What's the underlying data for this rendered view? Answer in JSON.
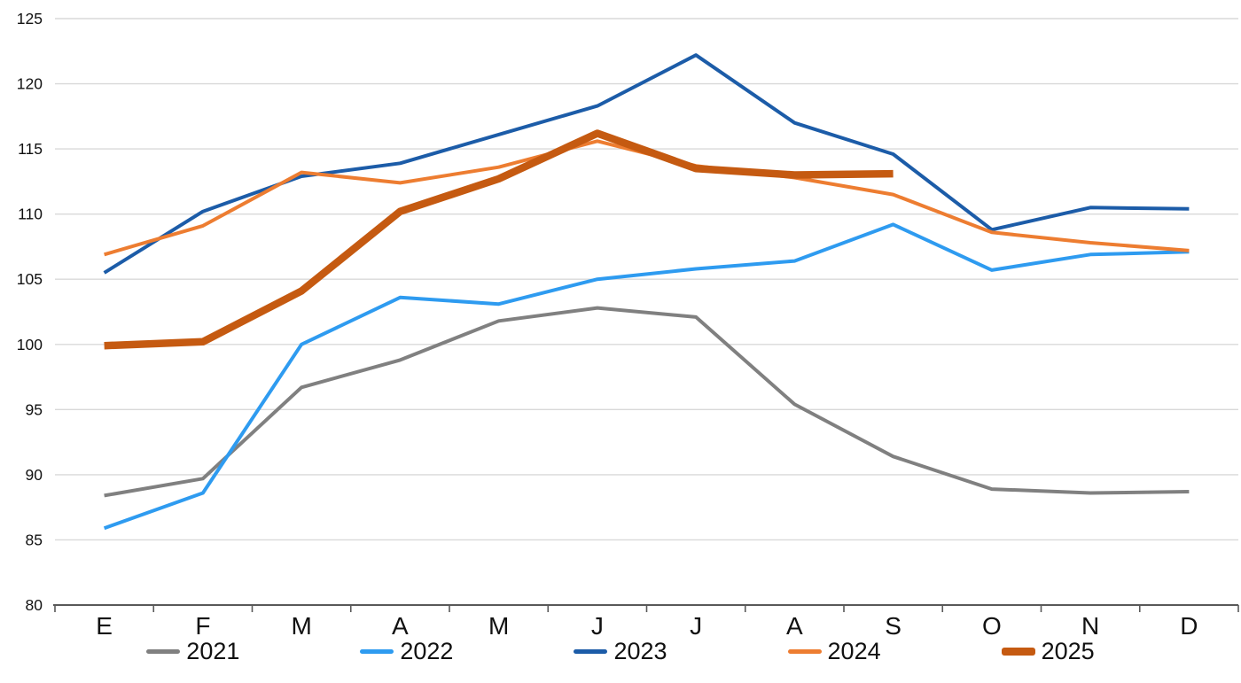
{
  "chart_data": {
    "type": "line",
    "title": "",
    "xlabel": "",
    "ylabel": "",
    "categories": [
      "E",
      "F",
      "M",
      "A",
      "M",
      "J",
      "J",
      "A",
      "S",
      "O",
      "N",
      "D"
    ],
    "series": [
      {
        "name": "2021",
        "color": "#808080",
        "width": 4,
        "values": [
          88.4,
          89.7,
          96.7,
          98.8,
          101.8,
          102.8,
          102.1,
          95.4,
          91.4,
          88.9,
          88.6,
          88.7
        ]
      },
      {
        "name": "2022",
        "color": "#2E9BF0",
        "width": 4,
        "values": [
          85.9,
          88.6,
          100.0,
          103.6,
          103.1,
          105.0,
          105.8,
          106.4,
          109.2,
          105.7,
          106.9,
          107.1
        ]
      },
      {
        "name": "2023",
        "color": "#1C5CA8",
        "width": 4,
        "values": [
          105.5,
          110.2,
          112.9,
          113.9,
          116.1,
          118.3,
          122.2,
          117.0,
          114.6,
          108.8,
          110.5,
          110.4
        ]
      },
      {
        "name": "2024",
        "color": "#ED7D31",
        "width": 4,
        "values": [
          106.9,
          109.1,
          113.2,
          112.4,
          113.6,
          115.6,
          113.7,
          112.8,
          111.5,
          108.6,
          107.8,
          107.2
        ]
      },
      {
        "name": "2025",
        "color": "#C55A11",
        "width": 8.5,
        "values": [
          99.9,
          100.2,
          104.1,
          110.2,
          112.7,
          116.2,
          113.5,
          113.0,
          113.1,
          null,
          null,
          null
        ]
      }
    ],
    "ylim": [
      80,
      125
    ],
    "y_ticks": [
      80,
      85,
      90,
      95,
      100,
      105,
      110,
      115,
      120,
      125
    ],
    "grid": "horizontal",
    "legend_position": "bottom"
  },
  "colors": {
    "background": "#FFFFFF",
    "gridline": "#D9D9D9",
    "axis": "#595959",
    "tick_text": "#111111"
  }
}
